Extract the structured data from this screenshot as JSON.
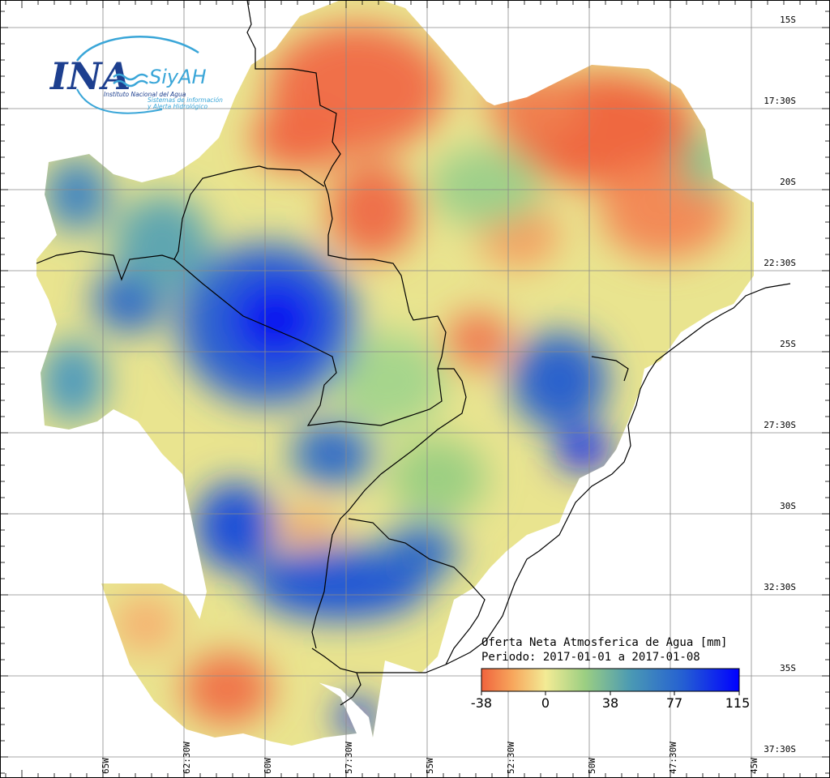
{
  "logo": {
    "main": "INA",
    "sub": "SiyAH",
    "org": "Instituto Nacional del Agua",
    "line1": "Sistemas de información",
    "line2": "y Alerta Hidrológico",
    "colors": {
      "dark": "#1d3f8f",
      "light": "#3aa6d8"
    }
  },
  "map": {
    "title_line1": "Oferta Neta Atmosferica de Agua [mm]",
    "title_line2": "Periodo: 2017-01-01 a 2017-01-08",
    "lat_labels": [
      "15S",
      "17:30S",
      "20S",
      "22:30S",
      "25S",
      "27:30S",
      "30S",
      "32:30S",
      "35S",
      "37:30S"
    ],
    "lon_labels": [
      "65W",
      "62:30W",
      "60W",
      "57:30W",
      "55W",
      "52:30W",
      "50W",
      "47:30W",
      "45W"
    ]
  },
  "colorbar": {
    "ticks": [
      "-38",
      "0",
      "38",
      "77",
      "115"
    ],
    "colors": [
      "#f0633d",
      "#f7a65c",
      "#f3eb95",
      "#9ccf82",
      "#4a99b4",
      "#2560d2",
      "#0000ff"
    ]
  }
}
